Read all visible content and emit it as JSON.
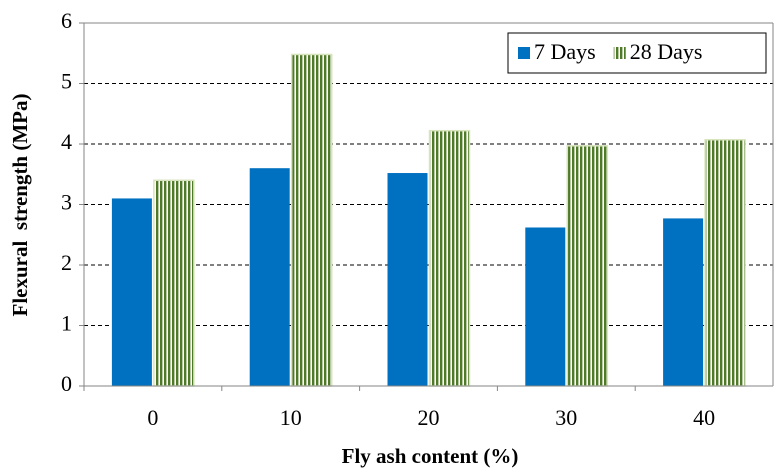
{
  "chart_data": {
    "type": "bar",
    "x_label": "Fly ash content (%)",
    "y_label": "Flexural  strength (MPa)",
    "categories": [
      "0",
      "10",
      "20",
      "30",
      "40"
    ],
    "series": [
      {
        "name": "7 Days",
        "color": "#0070c0",
        "pattern": "solid",
        "values": [
          3.1,
          3.6,
          3.52,
          2.62,
          2.77
        ]
      },
      {
        "name": "28 Days",
        "color": "#4f7a28",
        "pattern": "vertical-stripes",
        "values": [
          3.4,
          5.48,
          4.22,
          3.97,
          4.07
        ]
      }
    ],
    "ylim": [
      0,
      6
    ],
    "yticks": [
      0,
      1,
      2,
      3,
      4,
      5,
      6
    ],
    "grid": true,
    "legend": "top-right"
  }
}
